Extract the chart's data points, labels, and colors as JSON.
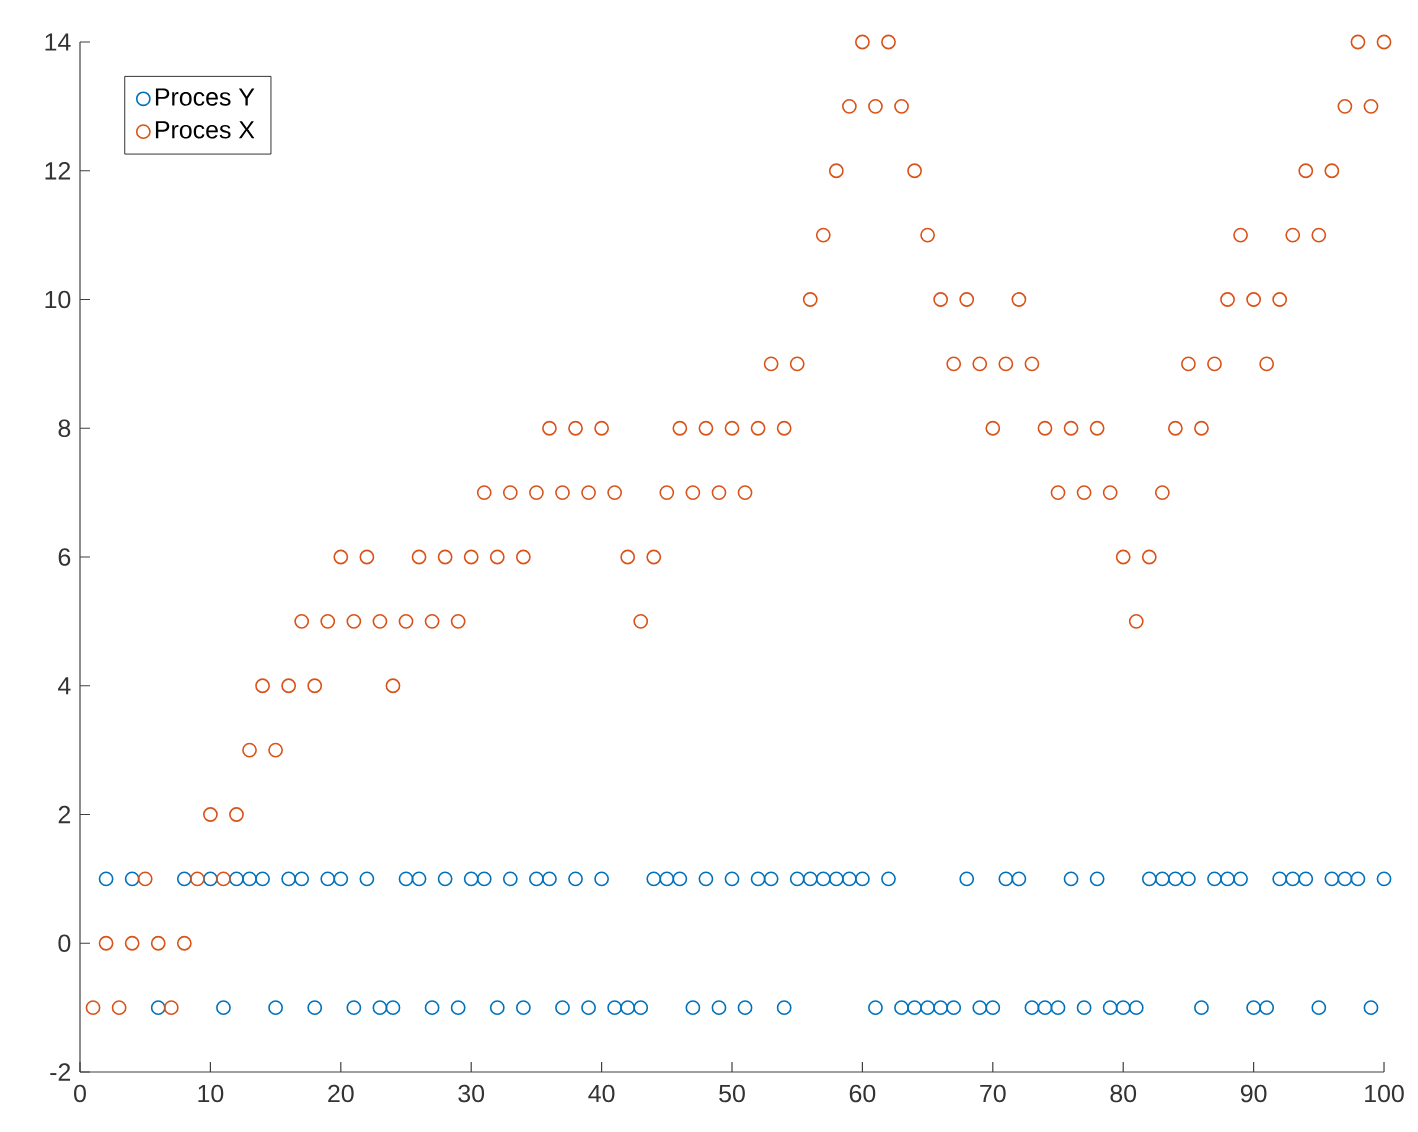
{
  "chart_data": {
    "type": "scatter",
    "x": [
      1,
      2,
      3,
      4,
      5,
      6,
      7,
      8,
      9,
      10,
      11,
      12,
      13,
      14,
      15,
      16,
      17,
      18,
      19,
      20,
      21,
      22,
      23,
      24,
      25,
      26,
      27,
      28,
      29,
      30,
      31,
      32,
      33,
      34,
      35,
      36,
      37,
      38,
      39,
      40,
      41,
      42,
      43,
      44,
      45,
      46,
      47,
      48,
      49,
      50,
      51,
      52,
      53,
      54,
      55,
      56,
      57,
      58,
      59,
      60,
      61,
      62,
      63,
      64,
      65,
      66,
      67,
      68,
      69,
      70,
      71,
      72,
      73,
      74,
      75,
      76,
      77,
      78,
      79,
      80,
      81,
      82,
      83,
      84,
      85,
      86,
      87,
      88,
      89,
      90,
      91,
      92,
      93,
      94,
      95,
      96,
      97,
      98,
      99,
      100
    ],
    "series": [
      {
        "name": "Proces Y",
        "color": "#0072bd",
        "values": [
          null,
          1,
          null,
          1,
          null,
          -1,
          null,
          1,
          null,
          1,
          -1,
          1,
          1,
          1,
          -1,
          1,
          1,
          -1,
          1,
          1,
          -1,
          1,
          -1,
          -1,
          1,
          1,
          -1,
          1,
          -1,
          1,
          1,
          -1,
          1,
          -1,
          1,
          1,
          -1,
          1,
          -1,
          1,
          -1,
          -1,
          -1,
          1,
          1,
          1,
          -1,
          1,
          -1,
          1,
          -1,
          1,
          1,
          -1,
          1,
          1,
          1,
          1,
          1,
          1,
          -1,
          1,
          -1,
          -1,
          -1,
          -1,
          -1,
          1,
          -1,
          -1,
          1,
          1,
          -1,
          -1,
          -1,
          1,
          -1,
          1,
          -1,
          -1,
          -1,
          1,
          1,
          1,
          1,
          -1,
          1,
          1,
          1,
          -1,
          -1,
          1,
          1,
          1,
          -1,
          1,
          1,
          1,
          -1,
          1
        ]
      },
      {
        "name": "Proces X",
        "color": "#d95319",
        "values": [
          -1,
          0,
          -1,
          0,
          1,
          0,
          -1,
          0,
          1,
          2,
          1,
          2,
          3,
          4,
          3,
          4,
          5,
          4,
          5,
          6,
          5,
          6,
          5,
          4,
          5,
          6,
          5,
          6,
          5,
          6,
          7,
          6,
          7,
          6,
          7,
          8,
          7,
          8,
          7,
          8,
          7,
          6,
          5,
          6,
          7,
          8,
          7,
          8,
          7,
          8,
          7,
          8,
          9,
          8,
          9,
          10,
          11,
          12,
          13,
          14,
          13,
          14,
          13,
          12,
          11,
          10,
          9,
          10,
          9,
          8,
          9,
          10,
          9,
          8,
          7,
          8,
          7,
          8,
          7,
          6,
          5,
          6,
          7,
          8,
          9,
          8,
          9,
          10,
          11,
          10,
          9,
          10,
          11,
          12,
          11,
          12,
          13,
          14,
          13,
          14
        ]
      }
    ],
    "xlim": [
      0,
      100
    ],
    "xticks": [
      0,
      10,
      20,
      30,
      40,
      50,
      60,
      70,
      80,
      90,
      100
    ],
    "ylim": [
      -2,
      14
    ],
    "yticks": [
      -2,
      0,
      2,
      4,
      6,
      8,
      10,
      12,
      14
    ],
    "marker": "circle",
    "legend": "top left",
    "grid": false
  }
}
